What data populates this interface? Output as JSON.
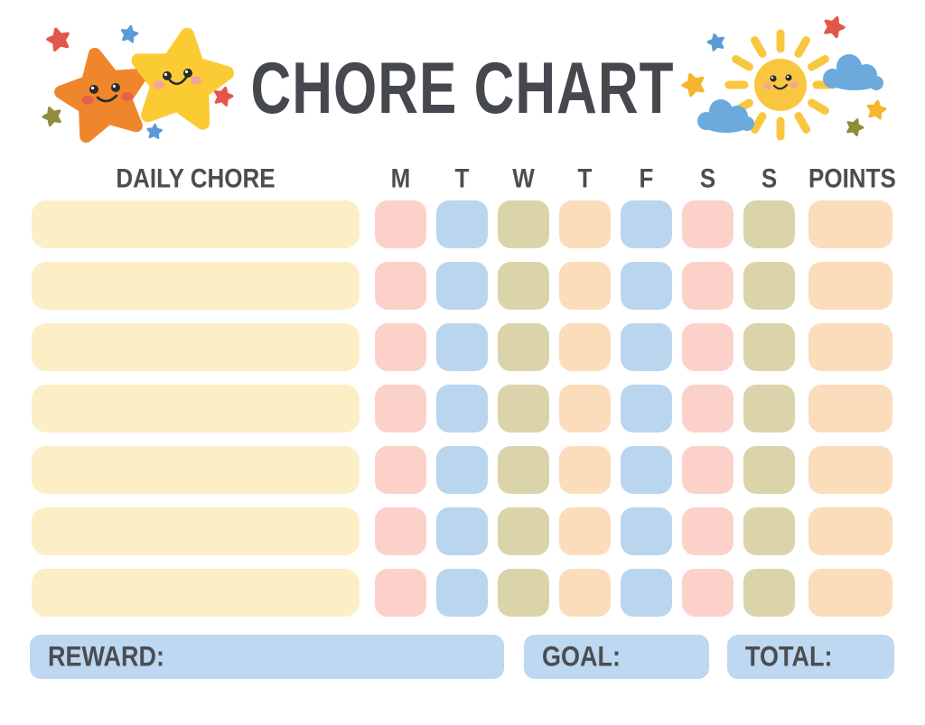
{
  "title": "CHORE CHART",
  "table": {
    "chore_column_header": "DAILY CHORE",
    "day_headers": [
      "M",
      "T",
      "W",
      "T",
      "F",
      "S",
      "S"
    ],
    "points_header": "POINTS",
    "row_count": 7,
    "chore_bar_color": "cell-cream",
    "day_cell_pattern": [
      "cell-pink",
      "cell-blue",
      "cell-olive",
      "cell-peach",
      "cell-blue",
      "cell-pink",
      "cell-olive"
    ],
    "points_cell_color": "cell-peach"
  },
  "footer": {
    "reward_label": "REWARD:",
    "goal_label": "GOAL:",
    "total_label": "TOTAL:"
  },
  "colors": {
    "text": "#4A4D52",
    "title": "#45484D",
    "cell-cream": "#FCEEC5",
    "cell-pink": "#FBD1CA",
    "cell-blue": "#BAD5EE",
    "cell-olive": "#DBD4AB",
    "cell-peach": "#FBDDBB",
    "footer-box": "#BDD8F0",
    "star-orange": "#F0862C",
    "star-yellow": "#FBCB33",
    "star-red": "#E2574A",
    "star-blue": "#5B9BD5",
    "star-olive": "#8F8C3A",
    "star-gold": "#F5B62E",
    "sun": "#F9C73F",
    "cloud": "#6CA9DC",
    "cheek-red": "#E4604A",
    "cheek-pink": "#F2A49E",
    "face": "#2A2A2A"
  }
}
